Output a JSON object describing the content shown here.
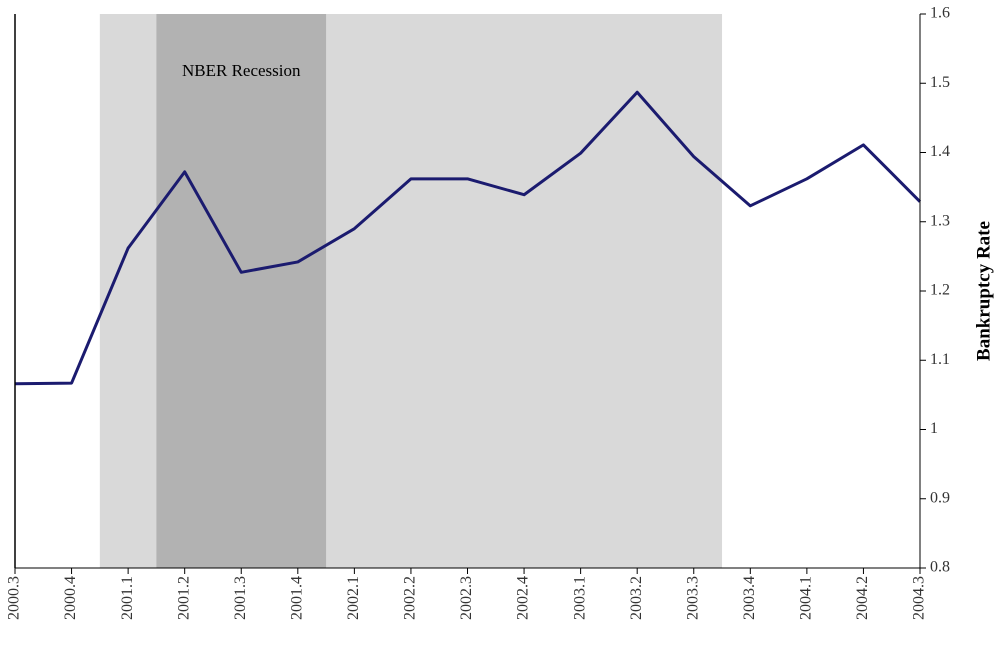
{
  "chart_data": {
    "type": "line",
    "y_axis_label": "Bankruptcy Rate",
    "categories": [
      "2000.3",
      "2000.4",
      "2001.1",
      "2001.2",
      "2001.3",
      "2001.4",
      "2002.1",
      "2002.2",
      "2002.3",
      "2002.4",
      "2003.1",
      "2003.2",
      "2003.3",
      "2003.4",
      "2004.1",
      "2004.2",
      "2004.3"
    ],
    "series": [
      {
        "color": "#1b1b6f",
        "values": [
          1.066,
          1.067,
          1.262,
          1.372,
          1.227,
          1.242,
          1.29,
          1.362,
          1.362,
          1.339,
          1.399,
          1.487,
          1.394,
          1.323,
          1.362,
          1.411,
          1.329
        ]
      }
    ],
    "shaded_regions": [
      {
        "start": 1.5,
        "end": 12.5,
        "color": "#d9d9d9"
      },
      {
        "start": 2.5,
        "end": 5.5,
        "color": "#b2b2b2",
        "label": "NBER Recession"
      }
    ],
    "ylim": [
      0.8,
      1.6
    ],
    "yticks": [
      0.8,
      0.9,
      1,
      1.1,
      1.2,
      1.3,
      1.4,
      1.5,
      1.6
    ],
    "y_axis_side": "right"
  }
}
